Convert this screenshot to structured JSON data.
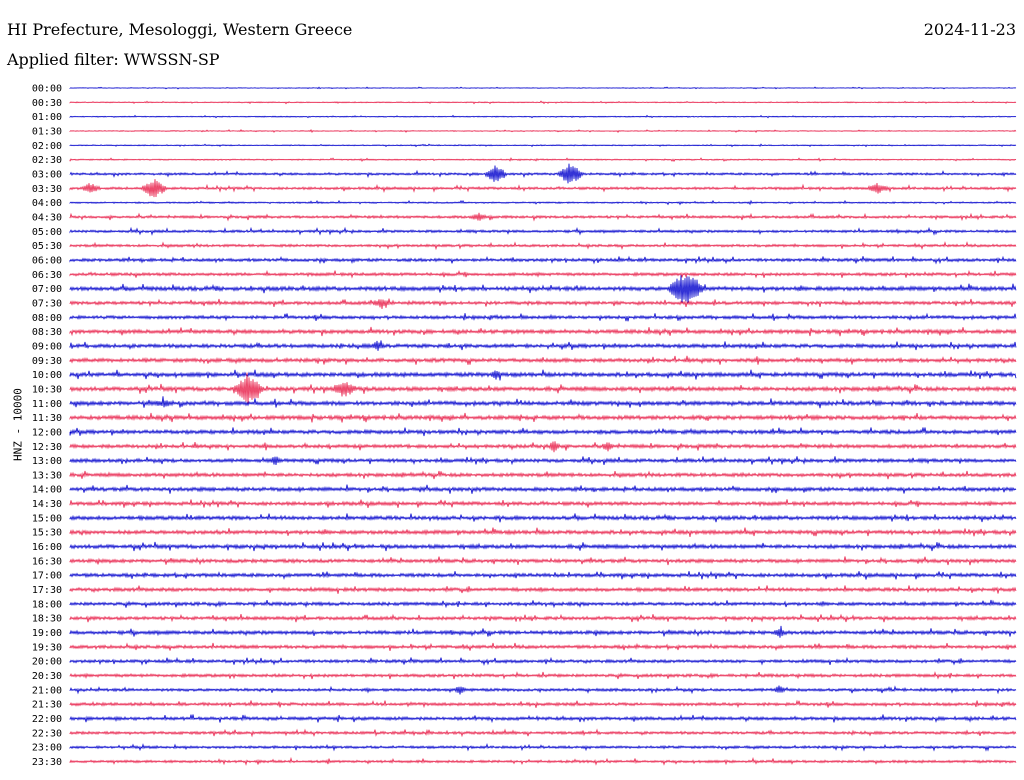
{
  "header": {
    "station": "HI Prefecture, Mesologgi, Western Greece",
    "date": "2024-11-23",
    "filter": "Applied filter: WWSSN-SP"
  },
  "colors": {
    "even_row": "#0000cc",
    "odd_row": "#e8204a",
    "background": "#ffffff"
  },
  "chart_data": {
    "type": "line",
    "title": "HI Prefecture, Mesologgi, Western Greece",
    "ylabel": "HNZ - 10000",
    "xlabel": "",
    "row_labels": [
      "00:00",
      "00:30",
      "01:00",
      "01:30",
      "02:00",
      "02:30",
      "03:00",
      "03:30",
      "04:00",
      "04:30",
      "05:00",
      "05:30",
      "06:00",
      "06:30",
      "07:00",
      "07:30",
      "08:00",
      "08:30",
      "09:00",
      "09:30",
      "10:00",
      "10:30",
      "11:00",
      "11:30",
      "12:00",
      "12:30",
      "13:00",
      "13:30",
      "14:00",
      "14:30",
      "15:00",
      "15:30",
      "16:00",
      "16:30",
      "17:00",
      "17:30",
      "18:00",
      "18:30",
      "19:00",
      "19:30",
      "20:00",
      "20:30",
      "21:00",
      "21:30",
      "22:00",
      "22:30",
      "23:00",
      "23:30"
    ],
    "row_noise": [
      0.3,
      0.4,
      0.4,
      0.4,
      0.4,
      0.5,
      0.9,
      1.0,
      0.6,
      1.0,
      1.0,
      1.0,
      1.2,
      1.2,
      1.6,
      1.3,
      1.3,
      1.5,
      1.5,
      1.5,
      1.6,
      1.6,
      1.6,
      1.6,
      1.5,
      1.4,
      1.4,
      1.4,
      1.5,
      1.4,
      1.5,
      1.5,
      1.5,
      1.4,
      1.4,
      1.4,
      1.3,
      1.3,
      1.4,
      1.3,
      1.2,
      1.2,
      1.1,
      1.2,
      1.3,
      1.1,
      1.0,
      1.0
    ],
    "events": [
      {
        "row": 6,
        "x": 0.45,
        "amp": 9,
        "dur": 0.012
      },
      {
        "row": 6,
        "x": 0.529,
        "amp": 12,
        "dur": 0.014
      },
      {
        "row": 7,
        "x": 0.022,
        "amp": 5,
        "dur": 0.01
      },
      {
        "row": 7,
        "x": 0.089,
        "amp": 10,
        "dur": 0.014
      },
      {
        "row": 7,
        "x": 0.854,
        "amp": 5,
        "dur": 0.012
      },
      {
        "row": 9,
        "x": 0.432,
        "amp": 4,
        "dur": 0.008
      },
      {
        "row": 14,
        "x": 0.651,
        "amp": 18,
        "dur": 0.02
      },
      {
        "row": 15,
        "x": 0.33,
        "amp": 4,
        "dur": 0.01
      },
      {
        "row": 18,
        "x": 0.325,
        "amp": 4,
        "dur": 0.006
      },
      {
        "row": 20,
        "x": 0.45,
        "amp": 4,
        "dur": 0.006
      },
      {
        "row": 21,
        "x": 0.189,
        "amp": 16,
        "dur": 0.016
      },
      {
        "row": 21,
        "x": 0.29,
        "amp": 8,
        "dur": 0.014
      },
      {
        "row": 22,
        "x": 0.1,
        "amp": 3,
        "dur": 0.01
      },
      {
        "row": 25,
        "x": 0.512,
        "amp": 6,
        "dur": 0.006
      },
      {
        "row": 25,
        "x": 0.568,
        "amp": 5,
        "dur": 0.006
      },
      {
        "row": 26,
        "x": 0.218,
        "amp": 4,
        "dur": 0.006
      },
      {
        "row": 38,
        "x": 0.75,
        "amp": 4,
        "dur": 0.006
      },
      {
        "row": 42,
        "x": 0.412,
        "amp": 4,
        "dur": 0.006
      },
      {
        "row": 42,
        "x": 0.75,
        "amp": 4,
        "dur": 0.006
      }
    ]
  }
}
